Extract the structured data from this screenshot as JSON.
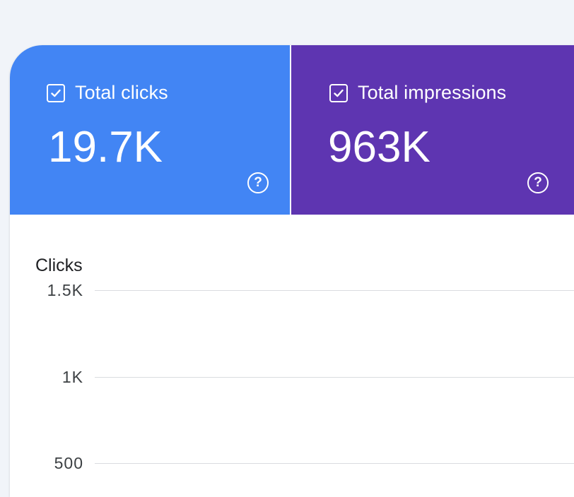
{
  "metrics": {
    "clicks": {
      "label": "Total clicks",
      "value": "19.7K",
      "checked": true,
      "color": "#4285f4",
      "icon": "help-icon"
    },
    "impressions": {
      "label": "Total impressions",
      "value": "963K",
      "checked": true,
      "color": "#5e35b1",
      "icon": "help-icon"
    }
  },
  "chart": {
    "y_axis_title": "Clicks",
    "ticks": [
      "1.5K",
      "1K",
      "500"
    ]
  },
  "chart_data": {
    "type": "line",
    "ylabel": "Clicks",
    "tick_labels": [
      "1.5K",
      "1K",
      "500"
    ],
    "grid": true
  }
}
